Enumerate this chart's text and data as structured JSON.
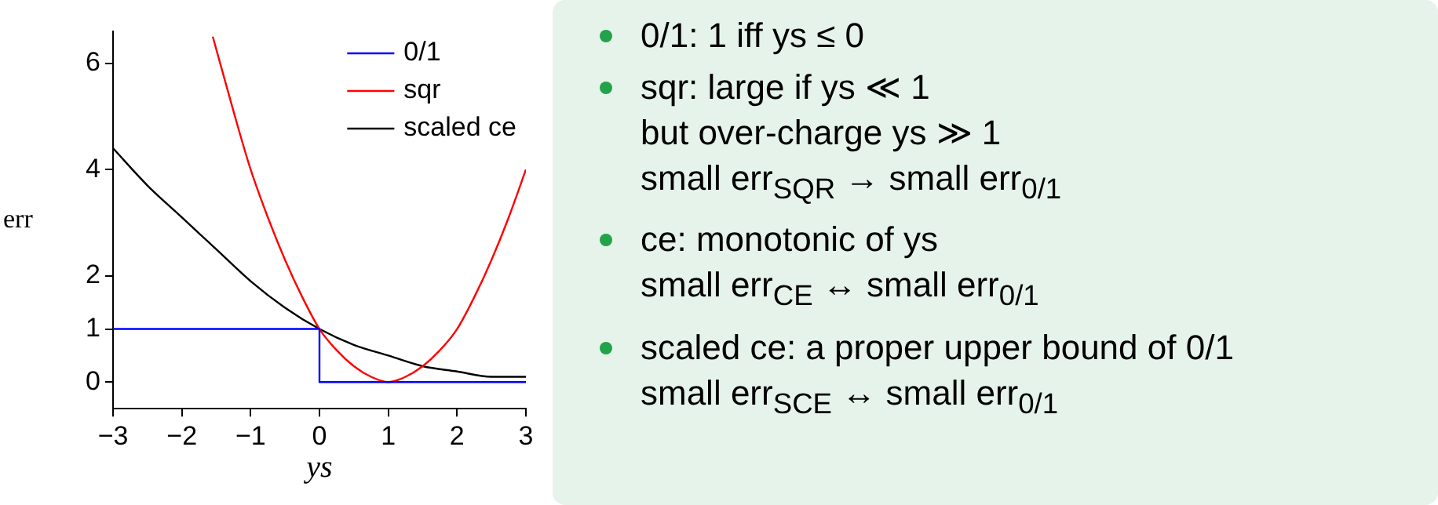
{
  "chart_data": [
    {
      "type": "line",
      "xlabel": "ys",
      "ylabel": "err",
      "xlim": [
        -3,
        3
      ],
      "xticks": [
        {
          "value": -3,
          "label": "−3"
        },
        {
          "value": -2,
          "label": "−2"
        },
        {
          "value": -1,
          "label": "−1"
        },
        0,
        1,
        2,
        3
      ],
      "ylim": [
        -0.5,
        6.6
      ],
      "yticks": [
        0,
        1,
        2,
        4,
        6
      ],
      "grid": false,
      "legend": "top right",
      "marker": "none",
      "line_style": "solid",
      "series": [
        {
          "name": "0/1",
          "color": "#0000ff",
          "x": [
            -3,
            0,
            0,
            3
          ],
          "values": [
            1,
            1,
            0,
            0
          ]
        },
        {
          "name": "sqr",
          "color": "#ff0000",
          "x": [
            -1.55,
            -1.25,
            -1,
            -0.75,
            -0.5,
            -0.25,
            0,
            0.25,
            0.5,
            0.75,
            1,
            1.25,
            1.5,
            1.75,
            2,
            2.25,
            2.5,
            2.75,
            3
          ],
          "values": [
            6.5,
            5.1,
            4,
            3.1,
            2.3,
            1.6,
            1,
            0.6,
            0.3,
            0.1,
            0,
            0.1,
            0.3,
            0.6,
            1,
            1.6,
            2.3,
            3.1,
            4
          ]
        },
        {
          "name": "scaled ce",
          "color": "#000000",
          "x": [
            -3,
            -2.5,
            -2,
            -1.5,
            -1,
            -0.5,
            0,
            0.5,
            1,
            1.5,
            2,
            2.5,
            3
          ],
          "values": [
            4.4,
            3.7,
            3.1,
            2.5,
            1.9,
            1.4,
            1,
            0.7,
            0.5,
            0.3,
            0.2,
            0.1,
            0.1
          ]
        }
      ]
    },
    {
      "type": "other",
      "annotations": [
        "0/1: 1 iff ys ≤ 0",
        "sqr: large if ys ≪ 1\nbut over-charge ys ≫ 1\nsmall err$_{SQR}$ → small err$_{0/1}$",
        "ce: monotonic of ys\nsmall err$_{CE}$ ↔ small err$_{0/1}$",
        "scaled ce: a proper upper bound of 0/1\nsmall err$_{SCE}$ ↔ small err$_{0/1}$"
      ]
    }
  ]
}
